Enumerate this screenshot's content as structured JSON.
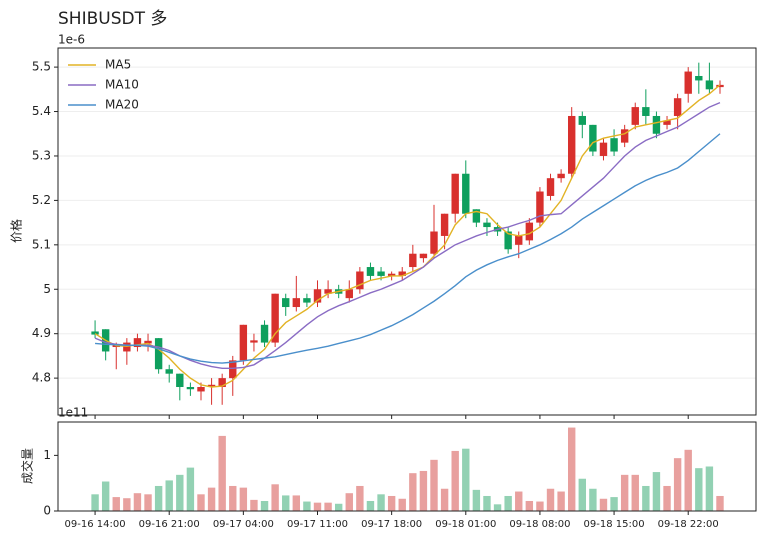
{
  "chart_data": [
    {
      "type": "candlestick",
      "title": "SHIBUSDT 多",
      "ylabel": "价格",
      "offset_text": "1e-6",
      "open": [
        4.905,
        4.91,
        4.87,
        4.86,
        4.87,
        4.878,
        4.89,
        4.82,
        4.81,
        4.78,
        4.77,
        4.78,
        4.78,
        4.8,
        4.84,
        4.88,
        4.92,
        4.88,
        4.98,
        4.96,
        4.98,
        4.97,
        4.99,
        5.0,
        4.98,
        5.0,
        5.05,
        5.04,
        5.03,
        5.03,
        5.05,
        5.07,
        5.08,
        5.12,
        5.17,
        5.26,
        5.18,
        5.15,
        5.14,
        5.13,
        5.1,
        5.11,
        5.15,
        5.21,
        5.25,
        5.26,
        5.39,
        5.37,
        5.3,
        5.34,
        5.33,
        5.37,
        5.41,
        5.39,
        5.37,
        5.39,
        5.44,
        5.48,
        5.47,
        5.455
      ],
      "high": [
        4.93,
        4.91,
        4.88,
        4.89,
        4.9,
        4.9,
        4.89,
        4.83,
        4.81,
        4.79,
        4.79,
        4.8,
        4.81,
        4.85,
        4.92,
        4.9,
        4.93,
        4.99,
        4.99,
        5.03,
        4.99,
        5.02,
        5.02,
        5.01,
        5.02,
        5.05,
        5.06,
        5.05,
        5.04,
        5.05,
        5.1,
        5.08,
        5.19,
        5.17,
        5.26,
        5.29,
        5.18,
        5.16,
        5.15,
        5.14,
        5.13,
        5.16,
        5.23,
        5.26,
        5.27,
        5.41,
        5.4,
        5.37,
        5.34,
        5.36,
        5.37,
        5.42,
        5.45,
        5.4,
        5.39,
        5.44,
        5.5,
        5.51,
        5.51,
        5.47
      ],
      "low": [
        4.89,
        4.84,
        4.82,
        4.83,
        4.86,
        4.86,
        4.81,
        4.79,
        4.75,
        4.76,
        4.75,
        4.74,
        4.74,
        4.76,
        4.83,
        4.86,
        4.87,
        4.87,
        4.94,
        4.95,
        4.96,
        4.96,
        4.98,
        4.98,
        4.97,
        4.99,
        5.02,
        5.02,
        5.02,
        5.02,
        5.04,
        5.06,
        5.07,
        5.09,
        5.15,
        5.16,
        5.14,
        5.12,
        5.12,
        5.08,
        5.07,
        5.1,
        5.14,
        5.2,
        5.24,
        5.25,
        5.34,
        5.3,
        5.29,
        5.3,
        5.32,
        5.36,
        5.37,
        5.34,
        5.36,
        5.36,
        5.42,
        5.44,
        5.44,
        5.44
      ],
      "close": [
        4.898,
        4.86,
        4.875,
        4.88,
        4.89,
        4.884,
        4.82,
        4.81,
        4.78,
        4.775,
        4.78,
        4.785,
        4.8,
        4.84,
        4.92,
        4.885,
        4.88,
        4.99,
        4.96,
        4.98,
        4.97,
        5.0,
        5.0,
        4.99,
        5.0,
        5.04,
        5.03,
        5.03,
        5.035,
        5.04,
        5.08,
        5.08,
        5.13,
        5.17,
        5.26,
        5.17,
        5.15,
        5.14,
        5.13,
        5.09,
        5.12,
        5.15,
        5.22,
        5.25,
        5.26,
        5.39,
        5.37,
        5.31,
        5.33,
        5.31,
        5.36,
        5.41,
        5.39,
        5.35,
        5.38,
        5.43,
        5.49,
        5.47,
        5.45,
        5.46
      ],
      "up_color": "#d8302d",
      "down_color": "#0e9f5d",
      "series": [
        {
          "name": "MA5",
          "color": "#e2b325",
          "values": [
            4.9,
            4.885,
            4.873,
            4.872,
            4.875,
            4.878,
            4.865,
            4.845,
            4.82,
            4.8,
            4.785,
            4.78,
            4.782,
            4.795,
            4.82,
            4.845,
            4.865,
            4.9,
            4.925,
            4.94,
            4.955,
            4.975,
            4.99,
            4.995,
            5.0,
            5.01,
            5.02,
            5.025,
            5.03,
            5.03,
            5.04,
            5.05,
            5.075,
            5.1,
            5.145,
            5.17,
            5.175,
            5.17,
            5.145,
            5.125,
            5.12,
            5.125,
            5.14,
            5.17,
            5.2,
            5.25,
            5.3,
            5.33,
            5.34,
            5.345,
            5.35,
            5.365,
            5.37,
            5.375,
            5.38,
            5.385,
            5.405,
            5.425,
            5.44,
            5.46
          ]
        },
        {
          "name": "MA10",
          "color": "#8a6cc4",
          "values": [
            4.89,
            4.88,
            4.876,
            4.874,
            4.874,
            4.874,
            4.87,
            4.862,
            4.85,
            4.84,
            4.832,
            4.826,
            4.822,
            4.822,
            4.824,
            4.83,
            4.845,
            4.862,
            4.88,
            4.9,
            4.92,
            4.938,
            4.952,
            4.963,
            4.972,
            4.982,
            4.992,
            5.0,
            5.01,
            5.02,
            5.035,
            5.05,
            5.07,
            5.085,
            5.1,
            5.11,
            5.12,
            5.128,
            5.135,
            5.14,
            5.148,
            5.155,
            5.165,
            5.168,
            5.17,
            5.19,
            5.21,
            5.23,
            5.25,
            5.275,
            5.3,
            5.32,
            5.335,
            5.345,
            5.355,
            5.365,
            5.38,
            5.395,
            5.41,
            5.42
          ]
        },
        {
          "name": "MA20",
          "color": "#4a8fcb",
          "values": [
            4.878,
            4.876,
            4.875,
            4.874,
            4.874,
            4.872,
            4.866,
            4.858,
            4.85,
            4.843,
            4.838,
            4.835,
            4.834,
            4.836,
            4.839,
            4.842,
            4.845,
            4.848,
            4.853,
            4.858,
            4.863,
            4.867,
            4.872,
            4.878,
            4.884,
            4.89,
            4.898,
            4.908,
            4.918,
            4.93,
            4.943,
            4.958,
            4.973,
            4.99,
            5.008,
            5.028,
            5.043,
            5.055,
            5.065,
            5.073,
            5.08,
            5.09,
            5.1,
            5.112,
            5.125,
            5.14,
            5.158,
            5.173,
            5.188,
            5.203,
            5.218,
            5.233,
            5.245,
            5.255,
            5.263,
            5.273,
            5.29,
            5.31,
            5.33,
            5.35
          ]
        }
      ],
      "legend": "upper left",
      "grid": true,
      "xlim": [
        -3.5,
        62.4
      ],
      "ylim": [
        4.717,
        5.543
      ],
      "yticks": [
        4.8,
        4.9,
        5.0,
        5.1,
        5.2,
        5.3,
        5.4,
        5.5
      ]
    },
    {
      "type": "bar",
      "ylabel": "成交量",
      "offset_text": "1e11",
      "values": [
        0.3,
        0.53,
        0.25,
        0.23,
        0.32,
        0.3,
        0.45,
        0.55,
        0.65,
        0.78,
        0.3,
        0.42,
        1.35,
        0.45,
        0.42,
        0.2,
        0.18,
        0.48,
        0.28,
        0.28,
        0.17,
        0.15,
        0.15,
        0.13,
        0.32,
        0.45,
        0.18,
        0.3,
        0.27,
        0.22,
        0.68,
        0.72,
        0.92,
        0.4,
        1.08,
        1.12,
        0.38,
        0.27,
        0.12,
        0.27,
        0.35,
        0.18,
        0.17,
        0.4,
        0.35,
        1.5,
        0.58,
        0.4,
        0.22,
        0.25,
        0.65,
        0.65,
        0.45,
        0.7,
        0.45,
        0.95,
        1.1,
        0.77,
        0.8,
        0.27
      ],
      "up_color": "#e8a09e",
      "down_color": "#92d1b3",
      "xlim": [
        -3.5,
        62.4
      ],
      "ylim": [
        0,
        1.6
      ],
      "yticks": [
        0,
        1
      ],
      "xticks": [
        {
          "value": 0,
          "label": "09-16 14:00"
        },
        {
          "value": 7,
          "label": "09-16 21:00"
        },
        {
          "value": 14,
          "label": "09-17 04:00"
        },
        {
          "value": 21,
          "label": "09-17 11:00"
        },
        {
          "value": 28,
          "label": "09-17 18:00"
        },
        {
          "value": 35,
          "label": "09-18 01:00"
        },
        {
          "value": 42,
          "label": "09-18 08:00"
        },
        {
          "value": 49,
          "label": "09-18 15:00"
        },
        {
          "value": 56,
          "label": "09-18 22:00"
        }
      ]
    }
  ]
}
